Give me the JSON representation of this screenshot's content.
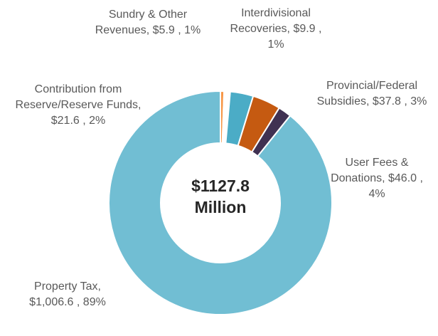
{
  "chart_data": {
    "type": "donut",
    "labels": [
      "Sundry & Other Revenues,  $5.9 , 1%",
      "Interdivisional Recoveries, $9.9 , 1%",
      "Provincial/Federal Subsidies,  $37.8 , 3%",
      "User Fees & Donations, $46.0 , 4%",
      "Contribution from Reserve/Reserve Funds,  $21.6 , 2%",
      "Property Tax, $1,006.6 , 89%"
    ],
    "values": [
      5.9,
      9.9,
      37.8,
      46.0,
      21.6,
      1006.6
    ],
    "value_labels": [
      "$5.9",
      "$9.9",
      "$37.8",
      "$46.0",
      "$21.6",
      "$1,006.6"
    ],
    "colors": [
      "#f79646",
      "#ffffff",
      "#4bacc6",
      "#c55a11",
      "#403152",
      "#71bed3"
    ],
    "center_label": "$1127.8",
    "center_unit": "Million"
  }
}
